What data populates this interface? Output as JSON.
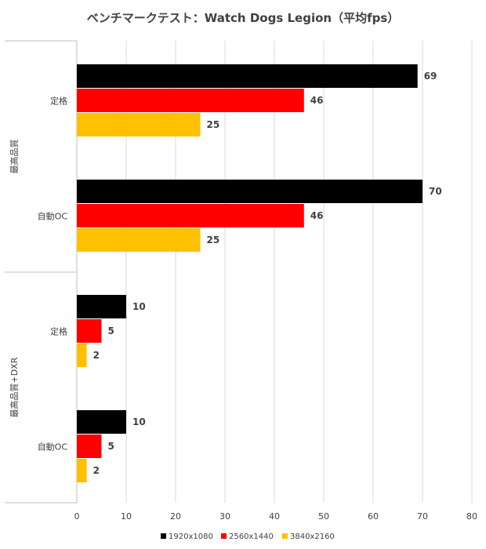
{
  "chart_data": {
    "type": "bar",
    "orientation": "horizontal",
    "title": "ベンチマークテスト：Watch Dogs Legion（平均fps）",
    "groups": [
      {
        "label": "最高品質",
        "categories": [
          "定格",
          "自動OC"
        ]
      },
      {
        "label": "最高品質+DXR",
        "categories": [
          "定格",
          "自動OC"
        ]
      }
    ],
    "categories": [
      "定格",
      "自動OC",
      "定格",
      "自動OC"
    ],
    "series": [
      {
        "name": "1920x1080",
        "color": "#000000",
        "values": [
          69,
          70,
          10,
          10
        ]
      },
      {
        "name": "2560x1440",
        "color": "#ff0000",
        "values": [
          46,
          46,
          5,
          5
        ]
      },
      {
        "name": "3840x2160",
        "color": "#ffc000",
        "values": [
          25,
          25,
          2,
          2
        ]
      }
    ],
    "xlim": [
      0,
      80
    ],
    "xticks": [
      0,
      10,
      20,
      30,
      40,
      50,
      60,
      70,
      80
    ],
    "grid": true,
    "legend_position": "bottom"
  }
}
